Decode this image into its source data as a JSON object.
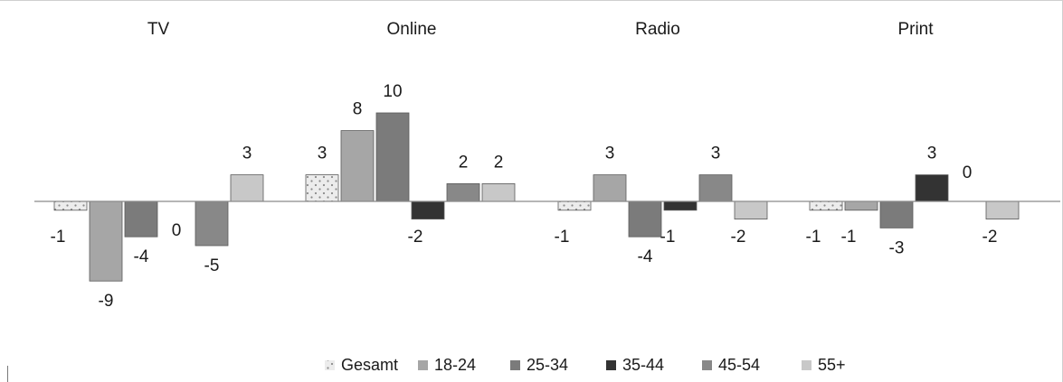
{
  "chart_data": {
    "type": "bar",
    "categories": [
      "TV",
      "Online",
      "Radio",
      "Print"
    ],
    "series": [
      {
        "name": "Gesamt",
        "values": [
          -1,
          3,
          -1,
          -1
        ],
        "color": "#e0e0e0",
        "pattern": "dots"
      },
      {
        "name": "18-24",
        "values": [
          -9,
          8,
          3,
          -1
        ],
        "color": "#a6a6a6"
      },
      {
        "name": "25-34",
        "values": [
          -4,
          10,
          -4,
          -3
        ],
        "color": "#7b7b7b"
      },
      {
        "name": "35-44",
        "values": [
          0,
          -2,
          -1,
          3
        ],
        "color": "#333333"
      },
      {
        "name": "45-54",
        "values": [
          -5,
          2,
          3,
          0
        ],
        "color": "#888888"
      },
      {
        "name": "55+",
        "values": [
          3,
          2,
          -2,
          -2
        ],
        "color": "#c8c8c8"
      }
    ],
    "ylim": [
      -11,
      11
    ],
    "grid": false,
    "legend": "bottom",
    "data_labels": true
  }
}
